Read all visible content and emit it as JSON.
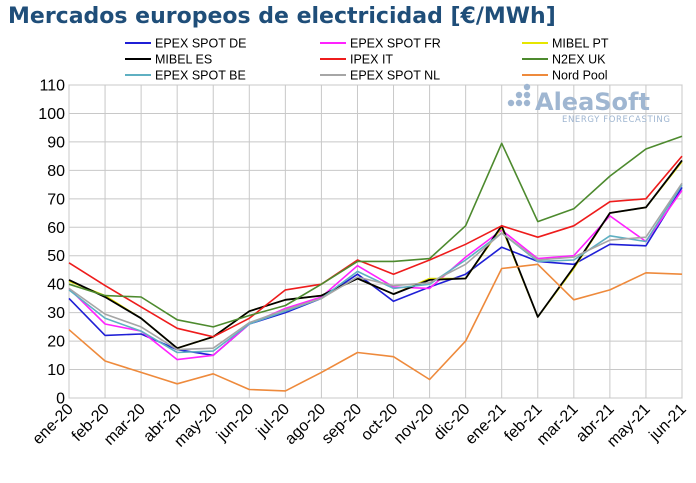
{
  "title": "Mercados europeos de electricidad [€/MWh]",
  "logo": {
    "name": "AleaSoft",
    "tagline": "ENERGY FORECASTING"
  },
  "chart_data": {
    "type": "line",
    "title": "Mercados europeos de electricidad [€/MWh]",
    "xlabel": "",
    "ylabel": "",
    "ylim": [
      0,
      110
    ],
    "yticks": [
      0,
      10,
      20,
      30,
      40,
      50,
      60,
      70,
      80,
      90,
      100,
      110
    ],
    "grid": true,
    "legend_position": "top",
    "categories": [
      "ene-20",
      "feb-20",
      "mar-20",
      "abr-20",
      "may-20",
      "jun-20",
      "jul-20",
      "ago-20",
      "sep-20",
      "oct-20",
      "nov-20",
      "dic-20",
      "ene-21",
      "feb-21",
      "mar-21",
      "abr-21",
      "may-21",
      "jun-21"
    ],
    "series": [
      {
        "name": "EPEX SPOT DE",
        "color": "#1f1fd6",
        "values": [
          35,
          22,
          22.5,
          17,
          15,
          26,
          30,
          35,
          43.5,
          34,
          39,
          43.5,
          53,
          48,
          47,
          54,
          53.5,
          74
        ]
      },
      {
        "name": "EPEX SPOT FR",
        "color": "#ff22ff",
        "values": [
          38.5,
          26,
          23.5,
          13.5,
          15,
          26,
          31.5,
          35.5,
          46.5,
          39,
          38.5,
          49.5,
          59,
          49,
          50,
          64,
          55,
          73
        ]
      },
      {
        "name": "MIBEL PT",
        "color": "#e6e600",
        "values": [
          41,
          36,
          28,
          17.5,
          21.5,
          30.5,
          34.5,
          36,
          42,
          36.5,
          42,
          42,
          60,
          28.5,
          45.5,
          65,
          67,
          83
        ]
      },
      {
        "name": "MIBEL ES",
        "color": "#000000",
        "values": [
          41.5,
          35.5,
          28,
          17.5,
          21.5,
          30.5,
          34.5,
          36,
          42,
          36.5,
          41.5,
          42,
          60.5,
          28.5,
          46,
          65,
          67,
          83.5
        ]
      },
      {
        "name": "IPEX IT",
        "color": "#ee1c1c",
        "values": [
          47.5,
          39.5,
          32,
          24.5,
          21.5,
          28,
          38,
          40,
          48.5,
          43.5,
          48.5,
          54,
          60.5,
          56.5,
          60.5,
          69,
          70,
          85
        ]
      },
      {
        "name": "N2EX UK",
        "color": "#4d8a2e",
        "values": [
          40,
          36,
          35.5,
          27.5,
          25,
          29,
          32.5,
          40,
          48,
          48,
          49,
          60.5,
          89.5,
          62,
          66.5,
          78,
          87.5,
          92
        ]
      },
      {
        "name": "EPEX SPOT BE",
        "color": "#5fb0c2",
        "values": [
          38,
          28,
          23.5,
          16,
          16.5,
          26,
          30.5,
          35,
          44.5,
          38.5,
          40,
          48.5,
          58,
          48,
          48.5,
          57,
          55,
          75
        ]
      },
      {
        "name": "EPEX SPOT NL",
        "color": "#a6a6a6",
        "values": [
          38.5,
          29.5,
          25,
          17,
          17.5,
          26.5,
          31,
          35,
          42.5,
          39.5,
          40.5,
          47,
          58,
          48.5,
          49.5,
          55.5,
          56.5,
          75.5
        ]
      },
      {
        "name": "Nord Pool",
        "color": "#ee8a3c",
        "values": [
          24,
          13,
          9,
          5,
          8.5,
          3,
          2.5,
          9,
          16,
          14.5,
          6.5,
          20,
          45.5,
          47,
          34.5,
          38,
          44,
          43.5
        ]
      }
    ]
  }
}
